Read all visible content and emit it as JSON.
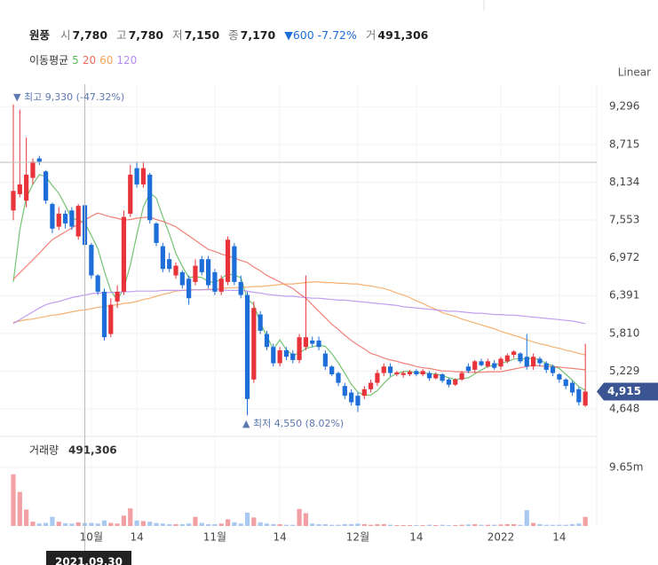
{
  "header": {
    "name": "원풍",
    "items": [
      {
        "label": "시",
        "value": "7,780"
      },
      {
        "label": "고",
        "value": "7,780"
      },
      {
        "label": "저",
        "value": "7,150"
      },
      {
        "label": "종",
        "value": "7,170"
      }
    ],
    "change_arrow": "▼",
    "change": "600",
    "change_pct": "-7.72%",
    "volume_label": "거",
    "volume": "491,306"
  },
  "chart_data": {
    "type": "candlestick",
    "categories": [
      null,
      null,
      null,
      null,
      null,
      null,
      null,
      null,
      null,
      null,
      null,
      null,
      "10월",
      null,
      null,
      null,
      null,
      null,
      null,
      "14",
      null,
      null,
      null,
      null,
      null,
      null,
      null,
      null,
      null,
      null,
      null,
      "11월",
      null,
      null,
      null,
      null,
      null,
      null,
      null,
      null,
      null,
      "14",
      null,
      null,
      null,
      null,
      null,
      null,
      null,
      null,
      null,
      null,
      null,
      "12월",
      null,
      null,
      null,
      null,
      null,
      null,
      null,
      null,
      "14",
      null,
      null,
      null,
      null,
      null,
      null,
      null,
      null,
      null,
      null,
      null,
      null,
      "2022",
      null,
      null,
      null,
      null,
      null,
      null,
      null,
      null,
      "14",
      null,
      null,
      null,
      null
    ],
    "open": [
      7700,
      7950,
      7850,
      8200,
      8500,
      8300,
      7800,
      7450,
      7650,
      7700,
      7300,
      7780,
      7170,
      6700,
      6450,
      5800,
      6300,
      6450,
      7650,
      8350,
      8100,
      8250,
      7500,
      7150,
      6950,
      6700,
      6750,
      6650,
      6600,
      6950,
      6950,
      6750,
      6450,
      6600,
      7150,
      6600,
      6400,
      5100,
      6100,
      5800,
      5600,
      5350,
      5550,
      5500,
      5400,
      5600,
      5700,
      5700,
      5500,
      5300,
      5200,
      5000,
      4900,
      4850,
      4850,
      4950,
      5050,
      5200,
      5300,
      5180,
      5170,
      5180,
      5230,
      5180,
      5200,
      5120,
      5180,
      5100,
      5020,
      5100,
      5300,
      5250,
      5380,
      5300,
      5350,
      5300,
      5380,
      5480,
      5500,
      5450,
      5300,
      5420,
      5350,
      5300,
      5180,
      5100,
      5050,
      4950,
      4700
    ],
    "high": [
      9330,
      9250,
      8820,
      8500,
      8540,
      8320,
      7820,
      7750,
      7700,
      7750,
      7800,
      7780,
      7200,
      6720,
      6500,
      6350,
      6550,
      7700,
      8400,
      8450,
      8450,
      8280,
      7520,
      7200,
      7050,
      6900,
      6780,
      6700,
      6950,
      7000,
      7000,
      6800,
      6700,
      7300,
      7200,
      6700,
      6450,
      6300,
      6150,
      5850,
      5650,
      5600,
      5600,
      5550,
      5800,
      6700,
      5760,
      5760,
      5550,
      5320,
      5220,
      5050,
      4950,
      4900,
      5000,
      5100,
      5250,
      5350,
      5350,
      5230,
      5230,
      5250,
      5260,
      5260,
      5230,
      5210,
      5200,
      5120,
      5120,
      5230,
      5350,
      5400,
      5420,
      5420,
      5400,
      5450,
      5500,
      5550,
      5520,
      5800,
      5500,
      5450,
      5380,
      5330,
      5200,
      5120,
      5080,
      4980,
      5650
    ],
    "low": [
      7550,
      7900,
      7750,
      8100,
      8400,
      7800,
      7350,
      7400,
      7420,
      7400,
      7250,
      7150,
      6650,
      6400,
      5700,
      5750,
      6200,
      6400,
      7600,
      8050,
      8050,
      7500,
      7150,
      6750,
      6750,
      6650,
      6500,
      6250,
      6550,
      6700,
      6500,
      6400,
      6400,
      6550,
      6550,
      6350,
      4550,
      5050,
      5800,
      5550,
      5300,
      5300,
      5400,
      5350,
      5350,
      5550,
      5600,
      5550,
      5250,
      5150,
      5000,
      4800,
      4700,
      4600,
      4800,
      4900,
      5000,
      5150,
      5150,
      5150,
      5130,
      5150,
      5150,
      5150,
      5080,
      5100,
      5050,
      4980,
      5000,
      5080,
      5200,
      5200,
      5300,
      5280,
      5250,
      5250,
      5350,
      5430,
      5350,
      5250,
      5250,
      5300,
      5200,
      5150,
      5050,
      4950,
      4850,
      4700,
      4680
    ],
    "close": [
      8000,
      8100,
      8250,
      8450,
      8450,
      7850,
      7420,
      7650,
      7500,
      7450,
      7770,
      7170,
      6700,
      6450,
      5750,
      6250,
      6450,
      7600,
      8250,
      8100,
      8350,
      7550,
      7200,
      6800,
      6800,
      6850,
      6550,
      6350,
      6850,
      6750,
      6550,
      6450,
      6650,
      7250,
      6600,
      6400,
      4800,
      6200,
      5850,
      5600,
      5350,
      5550,
      5450,
      5400,
      5750,
      5750,
      5650,
      5600,
      5300,
      5180,
      5050,
      4850,
      4750,
      4700,
      4950,
      5050,
      5200,
      5300,
      5200,
      5210,
      5200,
      5220,
      5180,
      5230,
      5120,
      5180,
      5080,
      5020,
      5100,
      5200,
      5230,
      5380,
      5320,
      5380,
      5280,
      5420,
      5470,
      5530,
      5380,
      5300,
      5450,
      5350,
      5250,
      5200,
      5100,
      5000,
      4900,
      4750,
      4915
    ],
    "volume": [
      8500000,
      5600000,
      2700000,
      700000,
      400000,
      500000,
      1500000,
      700000,
      450000,
      400000,
      600000,
      491306,
      500000,
      400000,
      900000,
      500000,
      400000,
      1700000,
      2900000,
      900000,
      800000,
      700000,
      500000,
      400000,
      300000,
      300000,
      300000,
      400000,
      1500000,
      500000,
      300000,
      300000,
      400000,
      1100000,
      600000,
      400000,
      2200000,
      1400000,
      600000,
      400000,
      300000,
      300000,
      200000,
      200000,
      2800000,
      2100000,
      400000,
      300000,
      300000,
      200000,
      200000,
      300000,
      300000,
      400000,
      300000,
      200000,
      300000,
      300000,
      200000,
      150000,
      150000,
      150000,
      150000,
      150000,
      200000,
      150000,
      200000,
      150000,
      150000,
      200000,
      250000,
      300000,
      200000,
      200000,
      200000,
      250000,
      300000,
      300000,
      200000,
      2600000,
      500000,
      300000,
      200000,
      200000,
      200000,
      200000,
      300000,
      400000,
      1500000
    ],
    "up_color": "#e8333a",
    "down_color": "#1d6ed8",
    "volume_up_color": "#f2a0a4",
    "volume_down_color": "#a9c9f1",
    "ylim": [
      4280,
      9640
    ],
    "yticks": [
      {
        "value": 4648,
        "label": "4,648"
      },
      {
        "value": 5229,
        "label": "5,229"
      },
      {
        "value": 5810,
        "label": "5,810"
      },
      {
        "value": 6391,
        "label": "6,391"
      },
      {
        "value": 6972,
        "label": "6,972"
      },
      {
        "value": 7553,
        "label": "7,553"
      },
      {
        "value": 8134,
        "label": "8,134"
      },
      {
        "value": 8715,
        "label": "8,715"
      },
      {
        "value": 9296,
        "label": "9,296"
      }
    ],
    "volume_ylim": [
      0,
      14000000
    ],
    "volume_yticks": [
      {
        "value": 9650000,
        "label": "9.65m"
      }
    ],
    "moving_averages": {
      "title": "이동평균",
      "series": [
        {
          "name": "5",
          "color": "#5cb85c",
          "values": [
            6600,
            7400,
            7900,
            8100,
            8250,
            8220,
            8084,
            7964,
            7774,
            7574,
            7558,
            7508,
            7318,
            7108,
            6768,
            6464,
            6320,
            6500,
            6860,
            7330,
            7750,
            7970,
            7890,
            7600,
            7340,
            7040,
            6840,
            6670,
            6680,
            6670,
            6610,
            6590,
            6650,
            6730,
            6700,
            6670,
            6340,
            6250,
            5970,
            5770,
            5560,
            5710,
            5560,
            5470,
            5500,
            5580,
            5600,
            5630,
            5610,
            5496,
            5356,
            5196,
            5026,
            4906,
            4860,
            4860,
            4930,
            5040,
            5140,
            5192,
            5222,
            5226,
            5202,
            5208,
            5190,
            5186,
            5158,
            5126,
            5100,
            5116,
            5126,
            5186,
            5246,
            5302,
            5318,
            5356,
            5374,
            5416,
            5416,
            5420,
            5426,
            5402,
            5346,
            5310,
            5270,
            5180,
            5090,
            4990,
            4933
          ]
        },
        {
          "name": "20",
          "color": "#ef6b5f",
          "values": [
            6640,
            6740,
            6840,
            6940,
            7040,
            7150,
            7250,
            7310,
            7370,
            7430,
            7490,
            7550,
            7610,
            7660,
            7630,
            7600,
            7580,
            7550,
            7560,
            7580,
            7590,
            7600,
            7560,
            7530,
            7490,
            7450,
            7380,
            7310,
            7240,
            7170,
            7100,
            7070,
            7030,
            7000,
            6970,
            6930,
            6900,
            6830,
            6770,
            6700,
            6650,
            6600,
            6550,
            6500,
            6420,
            6350,
            6250,
            6150,
            6050,
            5950,
            5870,
            5780,
            5700,
            5630,
            5570,
            5500,
            5470,
            5430,
            5400,
            5380,
            5350,
            5330,
            5300,
            5280,
            5270,
            5250,
            5230,
            5230,
            5220,
            5220,
            5210,
            5210,
            5210,
            5220,
            5220,
            5220,
            5240,
            5260,
            5280,
            5300,
            5320,
            5310,
            5300,
            5300,
            5290,
            5280,
            5270,
            5260,
            5250
          ]
        },
        {
          "name": "60",
          "color": "#f5a55a",
          "values": [
            5980,
            6000,
            6020,
            6030,
            6050,
            6070,
            6090,
            6100,
            6120,
            6140,
            6160,
            6170,
            6190,
            6210,
            6220,
            6240,
            6250,
            6270,
            6280,
            6300,
            6330,
            6350,
            6380,
            6410,
            6430,
            6460,
            6470,
            6470,
            6480,
            6480,
            6490,
            6490,
            6500,
            6510,
            6510,
            6520,
            6520,
            6530,
            6530,
            6540,
            6550,
            6560,
            6570,
            6570,
            6580,
            6590,
            6600,
            6600,
            6590,
            6590,
            6580,
            6580,
            6570,
            6570,
            6550,
            6540,
            6520,
            6500,
            6470,
            6430,
            6400,
            6360,
            6310,
            6270,
            6220,
            6180,
            6130,
            6100,
            6070,
            6030,
            6000,
            5970,
            5940,
            5910,
            5880,
            5840,
            5810,
            5780,
            5750,
            5710,
            5680,
            5650,
            5630,
            5600,
            5580,
            5550,
            5530,
            5500,
            5480
          ]
        },
        {
          "name": "120",
          "color": "#b78cf0",
          "values": [
            5960,
            6020,
            6080,
            6140,
            6200,
            6250,
            6280,
            6300,
            6330,
            6360,
            6380,
            6400,
            6420,
            6430,
            6430,
            6440,
            6440,
            6450,
            6450,
            6460,
            6460,
            6460,
            6460,
            6470,
            6470,
            6470,
            6470,
            6480,
            6480,
            6480,
            6480,
            6480,
            6480,
            6470,
            6470,
            6470,
            6460,
            6440,
            6430,
            6410,
            6400,
            6390,
            6380,
            6380,
            6370,
            6360,
            6350,
            6350,
            6340,
            6330,
            6320,
            6320,
            6310,
            6300,
            6290,
            6280,
            6270,
            6260,
            6250,
            6240,
            6220,
            6210,
            6200,
            6190,
            6180,
            6170,
            6160,
            6150,
            6150,
            6140,
            6130,
            6120,
            6120,
            6110,
            6100,
            6100,
            6090,
            6090,
            6080,
            6070,
            6060,
            6050,
            6040,
            6030,
            6020,
            6010,
            6000,
            5980,
            5960
          ]
        }
      ]
    },
    "scale_label": "Linear",
    "max_label": "▼ 최고 9,330 (-47.32%)",
    "min_label": "▲ 최저 4,550 (8.02%)",
    "last_price_label": "4,915",
    "volume_title": "거래량",
    "volume_value": "491,306",
    "crosshair_date": "2021.09.30"
  }
}
